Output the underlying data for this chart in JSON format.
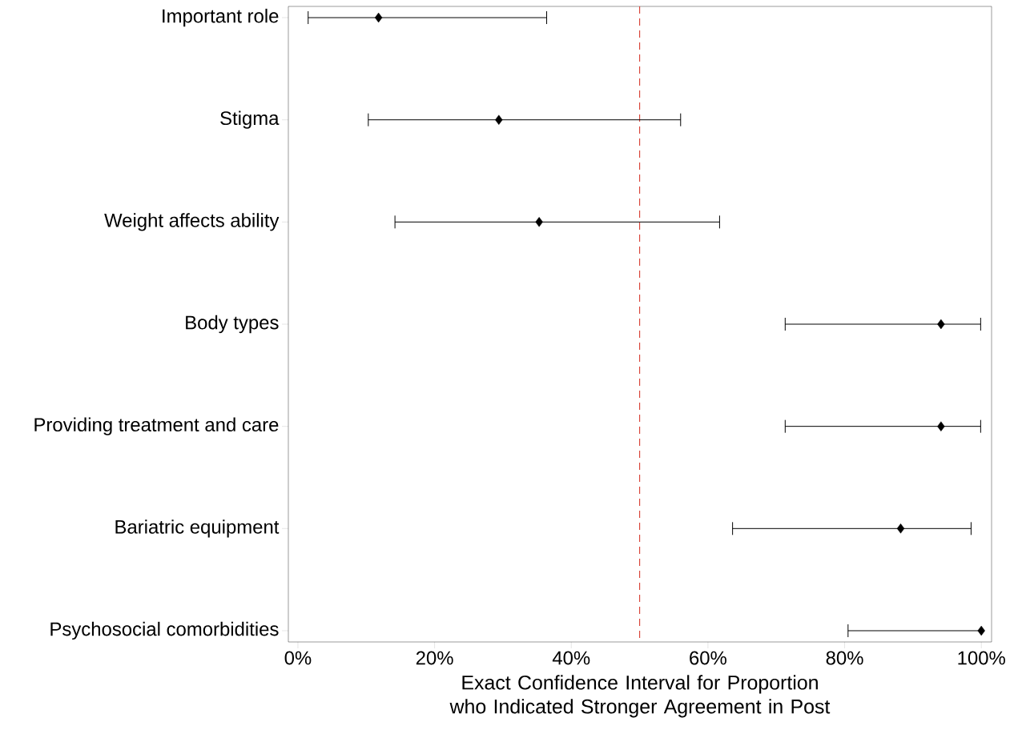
{
  "chart_data": {
    "type": "scatter",
    "orientation": "horizontal",
    "categories": [
      "Important role",
      "Stigma",
      "Weight affects ability",
      "Body types",
      "Providing treatment and care",
      "Bariatric equipment",
      "Psychosocial comorbidities"
    ],
    "values": [
      11.8,
      29.4,
      35.3,
      94.1,
      94.1,
      88.2,
      100
    ],
    "errors": [
      [
        1.5,
        36.4
      ],
      [
        10.3,
        56.0
      ],
      [
        14.2,
        61.7
      ],
      [
        71.3,
        99.9
      ],
      [
        71.3,
        99.9
      ],
      [
        63.6,
        98.5
      ],
      [
        80.5,
        100
      ]
    ],
    "color": "#000000",
    "marker": "diamond",
    "xlabel": "Exact Confidence Interval for Proportion who Indicated Stronger Agreement in Post",
    "xlim": [
      -1.4,
      101.5
    ],
    "xticks": [
      {
        "value": 0,
        "label": "0%"
      },
      {
        "value": 20,
        "label": "20%"
      },
      {
        "value": 40,
        "label": "40%"
      },
      {
        "value": 60,
        "label": "60%"
      },
      {
        "value": 80,
        "label": "80%"
      },
      {
        "value": 100,
        "label": "100%"
      }
    ],
    "ref_lines": [
      {
        "axis": "x",
        "value": 50,
        "color": "#d9473c",
        "line_style": "dashed"
      }
    ]
  }
}
